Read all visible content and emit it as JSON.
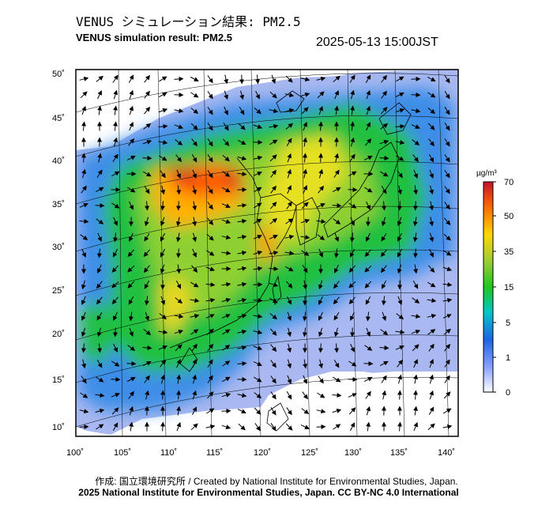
{
  "header": {
    "title_jp": "VENUS シミュレーション結果: PM2.5",
    "title_en": "VENUS simulation result: PM2.5",
    "timestamp": "2025-05-13 15:00JST"
  },
  "map": {
    "lat_labels": [
      "50˚",
      "45˚",
      "40˚",
      "35˚",
      "30˚",
      "25˚",
      "20˚",
      "15˚",
      "10˚"
    ],
    "lon_labels": [
      "100˚",
      "105˚",
      "110˚",
      "115˚",
      "120˚",
      "125˚",
      "130˚",
      "135˚",
      "140˚"
    ]
  },
  "colorbar": {
    "unit": "µg/m³",
    "ticks": [
      "70",
      "50",
      "35",
      "15",
      "5",
      "1",
      "0"
    ],
    "colors": [
      "#c8102e",
      "#ff6a00",
      "#ffd700",
      "#9acd32",
      "#1ec81e",
      "#00c8c8",
      "#1e64e6",
      "#8aa0ff",
      "#ffffff"
    ]
  },
  "footer": {
    "credit": "作成: 国立環境研究所 / Created by National Institute for Environmental Studies, Japan.",
    "license": "2025 National Institute for Environmental Studies, Japan. CC BY-NC 4.0 International"
  }
}
